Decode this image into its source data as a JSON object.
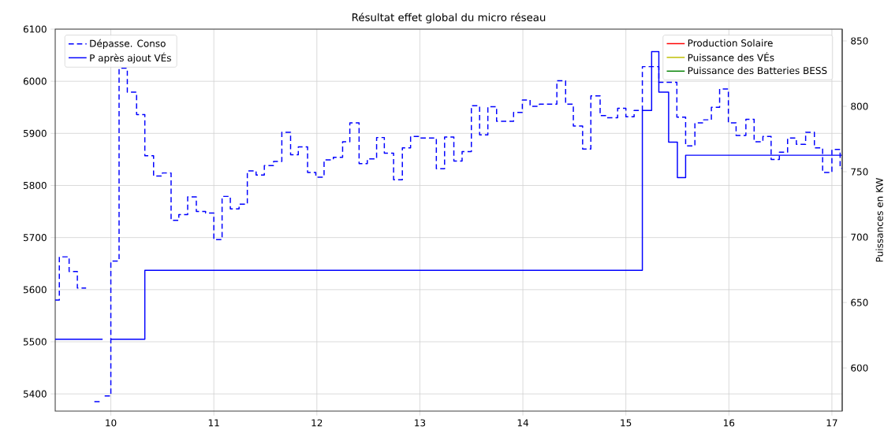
{
  "chart_data": {
    "type": "step",
    "title": "Résultat effet global du micro réseau",
    "y2label": "Puissances en KW",
    "xlim": [
      9.46,
      17.1
    ],
    "xticks": [
      10,
      11,
      12,
      13,
      14,
      15,
      16,
      17
    ],
    "ylim": [
      5367,
      6100
    ],
    "yticks": [
      5400,
      5500,
      5600,
      5700,
      5800,
      5900,
      6000,
      6100
    ],
    "y2lim": [
      567,
      859
    ],
    "y2ticks": [
      600,
      650,
      700,
      750,
      800,
      850
    ],
    "grid": true,
    "legend": "top",
    "marker": "none",
    "series": [
      {
        "name": "Dépasse. Conso",
        "color": "#0000ff",
        "line_style": "dashed",
        "axis": "y",
        "x": [
          9.46,
          9.5,
          9.595,
          9.675,
          9.76,
          9.84,
          9.9,
          9.94,
          10.0,
          10.08,
          10.16,
          10.25,
          10.33,
          10.415,
          10.5,
          10.585,
          10.66,
          10.746,
          10.83,
          10.92,
          11.0,
          11.08,
          11.16,
          11.245,
          11.325,
          11.41,
          11.49,
          11.58,
          11.66,
          11.745,
          11.82,
          11.91,
          11.99,
          12.07,
          12.16,
          12.25,
          12.32,
          12.41,
          12.49,
          12.58,
          12.655,
          12.745,
          12.83,
          12.91,
          13.0,
          13.16,
          13.24,
          13.33,
          13.41,
          13.5,
          13.58,
          13.66,
          13.745,
          13.91,
          13.995,
          14.07,
          14.16,
          14.33,
          14.415,
          14.49,
          14.58,
          14.66,
          14.75,
          14.81,
          14.92,
          15.0,
          15.08,
          15.16,
          15.32,
          15.495,
          15.58,
          15.67,
          15.755,
          15.83,
          15.91,
          15.995,
          16.07,
          16.165,
          16.245,
          16.33,
          16.41,
          16.49,
          16.57,
          16.655,
          16.745,
          16.83,
          16.91,
          17.0,
          17.08,
          17.1
        ],
        "values": [
          5580,
          5663,
          5635,
          5603,
          null,
          5385,
          null,
          5396,
          5655,
          6025,
          5979,
          5936,
          5857,
          5818,
          5824,
          5733,
          5744,
          5778,
          5750,
          5747,
          5696,
          5779,
          5755,
          5764,
          5828,
          5820,
          5838,
          5846,
          5902,
          5859,
          5874,
          5825,
          5816,
          5849,
          5854,
          5884,
          5920,
          5842,
          5851,
          5892,
          5862,
          5811,
          5872,
          5894,
          5891,
          5832,
          5893,
          5847,
          5865,
          5953,
          5897,
          5951,
          5923,
          5940,
          5964,
          5952,
          5956,
          6001,
          5956,
          5914,
          5870,
          5972,
          5934,
          5930,
          5948,
          5932,
          5944,
          6028,
          5998,
          5931,
          5876,
          5920,
          5926,
          5950,
          5985,
          5920,
          5896,
          5927,
          5884,
          5894,
          5850,
          5864,
          5891,
          5879,
          5902,
          5872,
          5825,
          5869,
          5833,
          5833
        ]
      },
      {
        "name": "P après ajout VÉs",
        "color": "#0000ff",
        "line_style": "solid",
        "axis": "y",
        "x": [
          9.46,
          9.92,
          10.0,
          10.33,
          15.16,
          15.25,
          15.32,
          15.415,
          15.5,
          15.58,
          17.1
        ],
        "values": [
          5505,
          null,
          5505,
          5637,
          5944,
          6057,
          5979,
          5883,
          5815,
          5858,
          5858
        ]
      },
      {
        "name": "Production Solaire",
        "color": "#ff0000",
        "line_style": "solid",
        "axis": "y2"
      },
      {
        "name": "Puissance des VÉs",
        "color": "#bfbf00",
        "line_style": "solid",
        "axis": "y2"
      },
      {
        "name": "Puissance des Batteries BESS",
        "color": "#008000",
        "line_style": "solid",
        "axis": "y2"
      }
    ]
  }
}
